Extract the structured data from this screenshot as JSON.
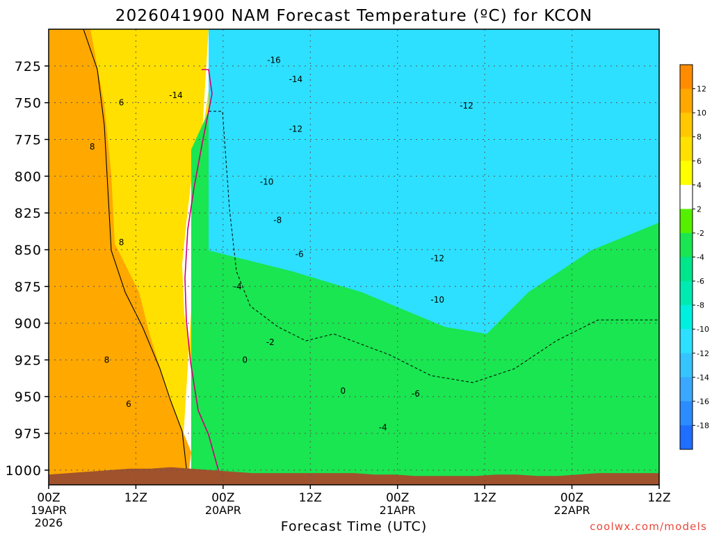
{
  "chart_data": {
    "type": "heatmap",
    "title": "2026041900 NAM Forecast Temperature (ºC) for KCON",
    "xlabel": "Forecast Time (UTC)",
    "ylabel": "",
    "y_axis": {
      "scale": "pressure (mb), inverted",
      "range": [
        1010,
        700
      ],
      "ticks": [
        725,
        750,
        775,
        800,
        825,
        850,
        875,
        900,
        925,
        950,
        975,
        1000
      ]
    },
    "x_axis": {
      "range_hours": [
        0,
        84
      ],
      "ticks": [
        {
          "hour": 0,
          "label": "00Z",
          "date": "19APR",
          "year": "2026"
        },
        {
          "hour": 12,
          "label": "12Z",
          "date": "",
          "year": ""
        },
        {
          "hour": 24,
          "label": "00Z",
          "date": "20APR",
          "year": ""
        },
        {
          "hour": 36,
          "label": "12Z",
          "date": "",
          "year": ""
        },
        {
          "hour": 48,
          "label": "00Z",
          "date": "21APR",
          "year": ""
        },
        {
          "hour": 60,
          "label": "12Z",
          "date": "",
          "year": ""
        },
        {
          "hour": 72,
          "label": "00Z",
          "date": "22APR",
          "year": ""
        },
        {
          "hour": 84,
          "label": "12Z",
          "date": "",
          "year": ""
        }
      ]
    },
    "grid": true,
    "colorbar": {
      "boundaries": [
        -20,
        -18,
        -16,
        -14,
        -12,
        -10,
        -8,
        -6,
        -4,
        -2,
        2,
        4,
        6,
        8,
        10,
        12,
        14
      ],
      "tick_labels": [
        "12",
        "10",
        "8",
        "6",
        "4",
        "2",
        "-2",
        "-4",
        "-6",
        "-8",
        "-10",
        "-12",
        "-14",
        "-16",
        "-18"
      ],
      "colors": [
        "#1f6eff",
        "#2a8cff",
        "#3aa8ff",
        "#36c4ff",
        "#2de0ff",
        "#00f0e0",
        "#00ebb2",
        "#00e68a",
        "#19e650",
        "#55f000",
        "#ffffff",
        "#ffff00",
        "#ffe000",
        "#ffc800",
        "#ffa800",
        "#ff8c00"
      ]
    },
    "contour_labels": [
      {
        "hour": 31.0,
        "p": 721,
        "value": -16
      },
      {
        "hour": 34.0,
        "p": 734,
        "value": -14
      },
      {
        "hour": 17.5,
        "p": 745,
        "value": -14
      },
      {
        "hour": 34.0,
        "p": 768,
        "value": -12
      },
      {
        "hour": 53.5,
        "p": 856,
        "value": -12
      },
      {
        "hour": 57.5,
        "p": 752,
        "value": -12
      },
      {
        "hour": 30.0,
        "p": 804,
        "value": -10
      },
      {
        "hour": 53.5,
        "p": 884,
        "value": -10
      },
      {
        "hour": 31.5,
        "p": 830,
        "value": -8
      },
      {
        "hour": 34.5,
        "p": 853,
        "value": -6
      },
      {
        "hour": 50.5,
        "p": 948,
        "value": -6
      },
      {
        "hour": 26.0,
        "p": 875,
        "value": -4
      },
      {
        "hour": 46.0,
        "p": 971,
        "value": -4
      },
      {
        "hour": 30.5,
        "p": 913,
        "value": -2
      },
      {
        "hour": 27.0,
        "p": 925,
        "value": 0
      },
      {
        "hour": 40.5,
        "p": 946,
        "value": 0
      },
      {
        "hour": 10.0,
        "p": 750,
        "value": 6
      },
      {
        "hour": 11.0,
        "p": 955,
        "value": 6
      },
      {
        "hour": 6.0,
        "p": 780,
        "value": 8
      },
      {
        "hour": 10.0,
        "p": 845,
        "value": 8
      },
      {
        "hour": 8.0,
        "p": 925,
        "value": 8
      }
    ],
    "ground_surface_mb": [
      1003,
      1002,
      1001,
      1000,
      999,
      999,
      998,
      999,
      1000,
      1001,
      1002,
      1002,
      1002,
      1002,
      1002,
      1002,
      1003,
      1003,
      1004,
      1004,
      1004,
      1004,
      1003,
      1003,
      1004,
      1004,
      1003,
      1002,
      1002,
      1002,
      1002
    ]
  },
  "watermark": "coolwx.com/models"
}
